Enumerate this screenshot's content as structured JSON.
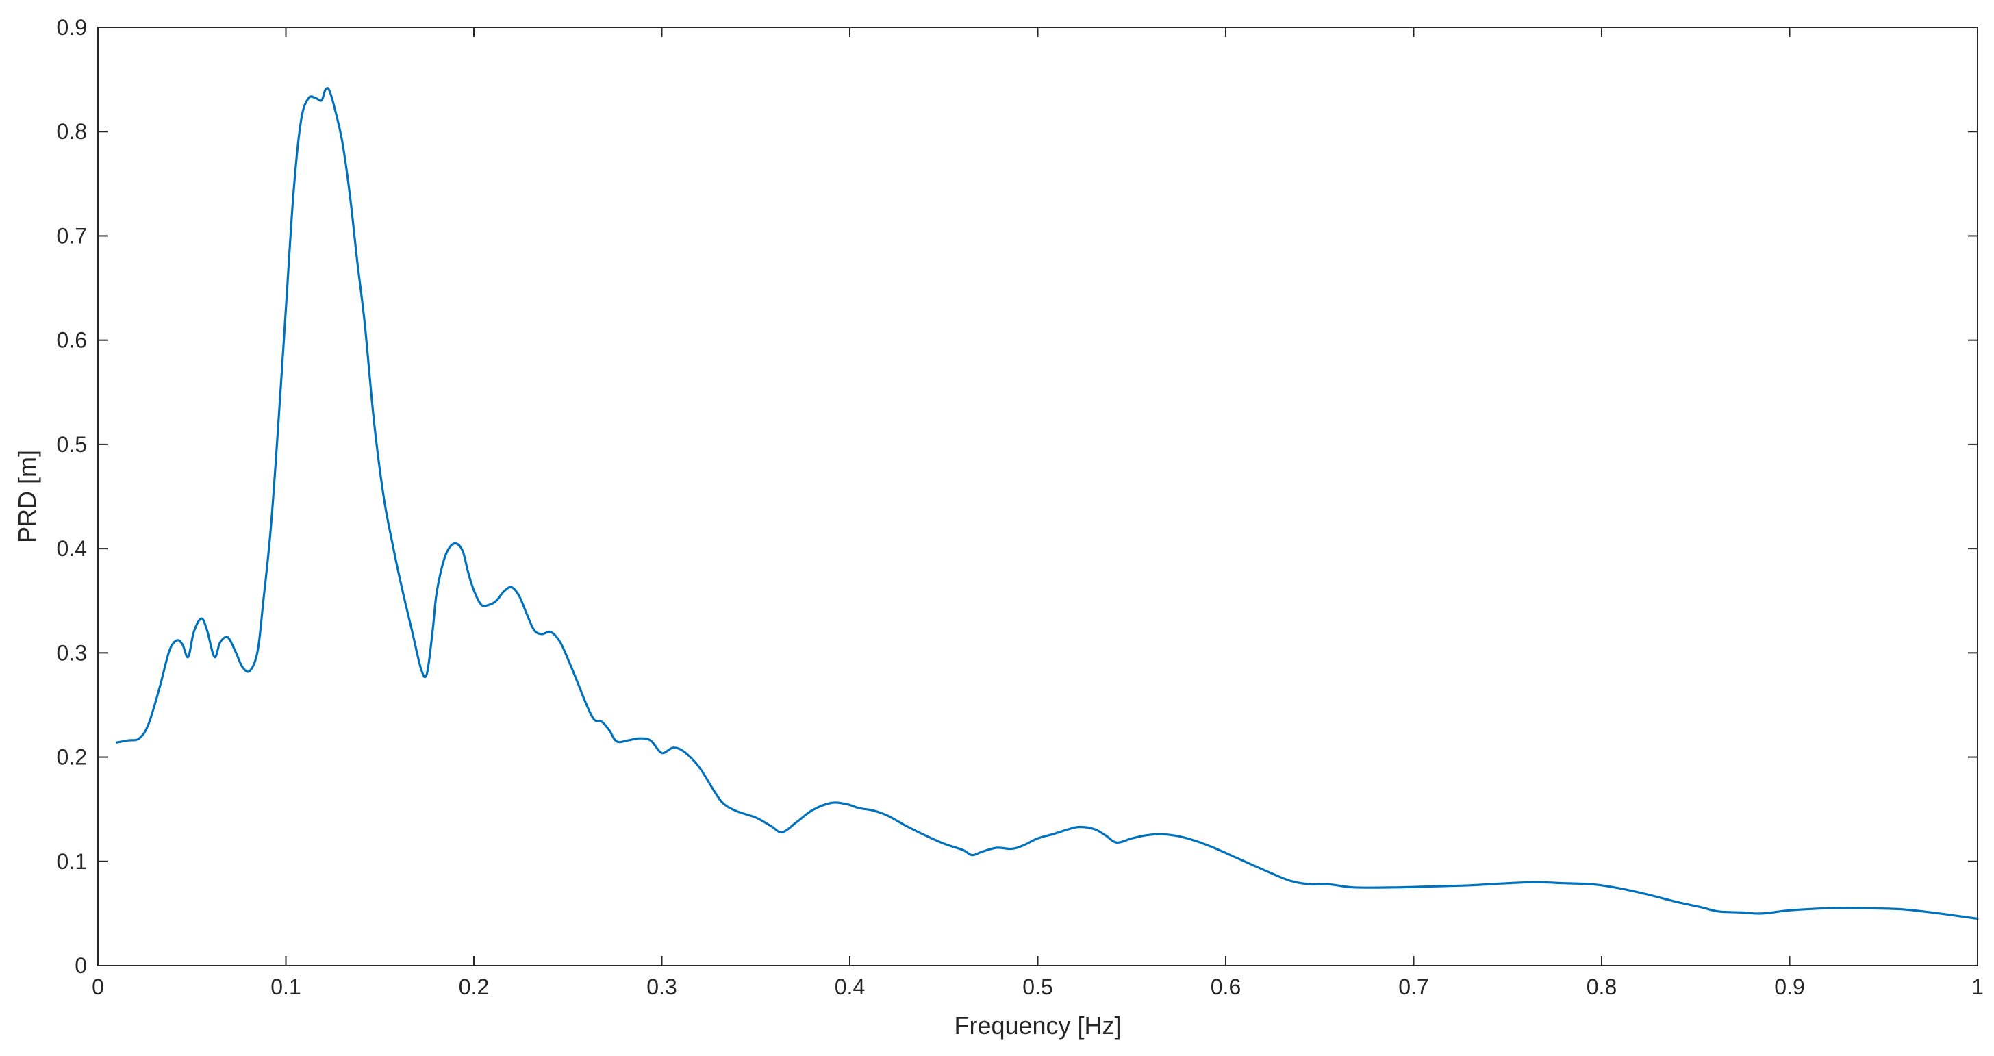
{
  "chart_data": {
    "type": "line",
    "title": "",
    "xlabel": "Frequency [Hz]",
    "ylabel": "PRD [m]",
    "xlim": [
      0,
      1
    ],
    "ylim": [
      0,
      0.9
    ],
    "x_ticks": [
      "0",
      "0.1",
      "0.2",
      "0.3",
      "0.4",
      "0.5",
      "0.6",
      "0.7",
      "0.8",
      "0.9",
      "1"
    ],
    "y_ticks": [
      "0",
      "0.1",
      "0.2",
      "0.3",
      "0.4",
      "0.5",
      "0.6",
      "0.7",
      "0.8",
      "0.9"
    ],
    "grid": false,
    "color": "#0072bd",
    "series": [
      {
        "x": [
          0.01,
          0.016,
          0.022,
          0.027,
          0.033,
          0.038,
          0.042,
          0.045,
          0.048,
          0.051,
          0.055,
          0.058,
          0.062,
          0.065,
          0.069,
          0.073,
          0.077,
          0.081,
          0.085,
          0.088,
          0.092,
          0.096,
          0.1,
          0.104,
          0.108,
          0.112,
          0.116,
          0.119,
          0.121,
          0.123,
          0.126,
          0.13,
          0.134,
          0.138,
          0.142,
          0.147,
          0.152,
          0.157,
          0.162,
          0.167,
          0.172,
          0.175,
          0.178,
          0.18,
          0.183,
          0.186,
          0.19,
          0.194,
          0.197,
          0.2,
          0.204,
          0.208,
          0.212,
          0.216,
          0.22,
          0.224,
          0.228,
          0.232,
          0.236,
          0.241,
          0.246,
          0.251,
          0.256,
          0.26,
          0.264,
          0.268,
          0.272,
          0.276,
          0.282,
          0.288,
          0.294,
          0.3,
          0.306,
          0.312,
          0.32,
          0.328,
          0.333,
          0.34,
          0.35,
          0.358,
          0.364,
          0.372,
          0.38,
          0.39,
          0.398,
          0.405,
          0.412,
          0.42,
          0.43,
          0.44,
          0.45,
          0.46,
          0.465,
          0.47,
          0.478,
          0.486,
          0.492,
          0.5,
          0.508,
          0.515,
          0.522,
          0.53,
          0.536,
          0.542,
          0.55,
          0.558,
          0.566,
          0.575,
          0.585,
          0.595,
          0.605,
          0.615,
          0.625,
          0.635,
          0.645,
          0.655,
          0.668,
          0.69,
          0.71,
          0.73,
          0.75,
          0.765,
          0.78,
          0.795,
          0.81,
          0.825,
          0.84,
          0.853,
          0.862,
          0.875,
          0.885,
          0.9,
          0.92,
          0.94,
          0.96,
          0.98,
          1.0
        ],
        "values": [
          0.214,
          0.216,
          0.218,
          0.232,
          0.268,
          0.302,
          0.312,
          0.308,
          0.296,
          0.32,
          0.333,
          0.322,
          0.296,
          0.31,
          0.315,
          0.302,
          0.286,
          0.283,
          0.302,
          0.35,
          0.42,
          0.52,
          0.63,
          0.74,
          0.81,
          0.832,
          0.832,
          0.83,
          0.84,
          0.84,
          0.822,
          0.79,
          0.74,
          0.675,
          0.615,
          0.52,
          0.45,
          0.402,
          0.36,
          0.322,
          0.284,
          0.28,
          0.32,
          0.355,
          0.382,
          0.398,
          0.405,
          0.398,
          0.377,
          0.36,
          0.346,
          0.346,
          0.35,
          0.359,
          0.363,
          0.355,
          0.338,
          0.322,
          0.318,
          0.32,
          0.31,
          0.29,
          0.268,
          0.25,
          0.236,
          0.234,
          0.226,
          0.215,
          0.216,
          0.218,
          0.216,
          0.204,
          0.209,
          0.205,
          0.19,
          0.167,
          0.155,
          0.148,
          0.142,
          0.134,
          0.128,
          0.138,
          0.149,
          0.156,
          0.155,
          0.151,
          0.149,
          0.144,
          0.134,
          0.125,
          0.117,
          0.111,
          0.106,
          0.109,
          0.113,
          0.112,
          0.115,
          0.122,
          0.126,
          0.13,
          0.133,
          0.131,
          0.125,
          0.118,
          0.122,
          0.125,
          0.126,
          0.124,
          0.119,
          0.112,
          0.104,
          0.096,
          0.088,
          0.081,
          0.078,
          0.078,
          0.075,
          0.075,
          0.076,
          0.077,
          0.079,
          0.08,
          0.079,
          0.078,
          0.074,
          0.068,
          0.061,
          0.056,
          0.052,
          0.051,
          0.05,
          0.053,
          0.055,
          0.055,
          0.054,
          0.05,
          0.045
        ]
      }
    ]
  }
}
